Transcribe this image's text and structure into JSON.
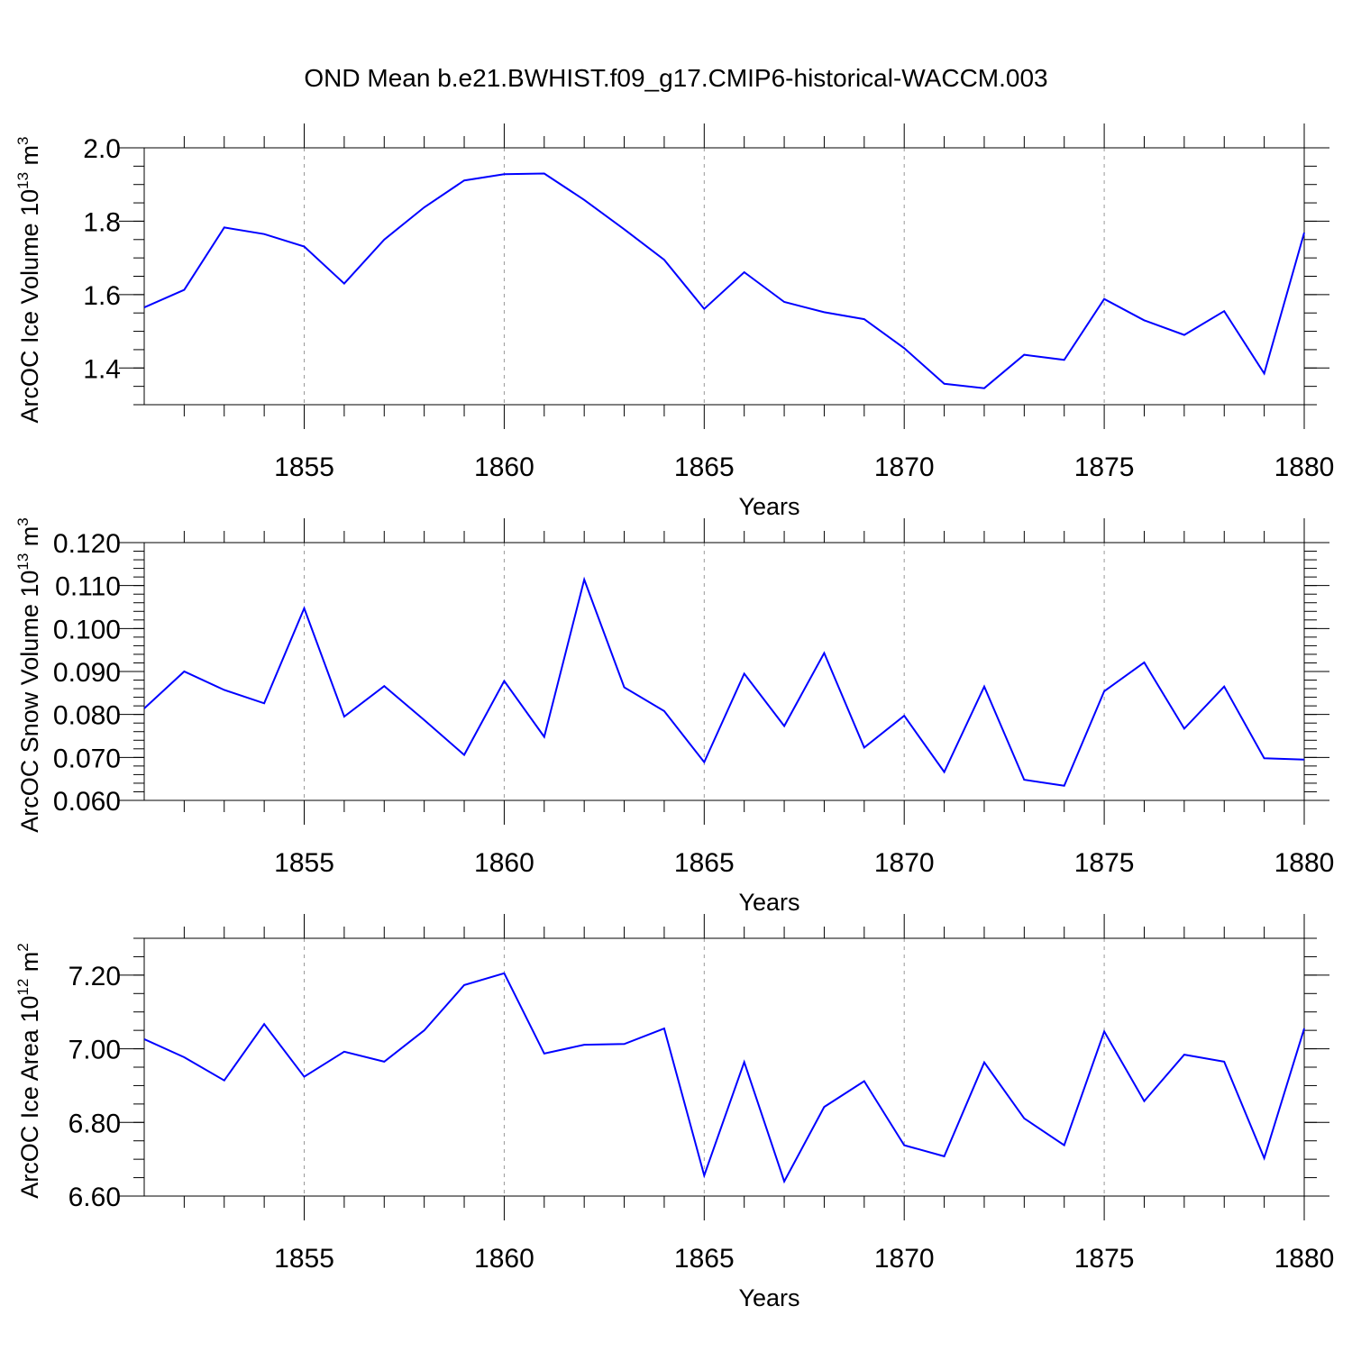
{
  "title": "OND Mean b.e21.BWHIST.f09_g17.CMIP6-historical-WACCM.003",
  "colors": {
    "series": "#0000ff",
    "grid": "#999999",
    "axis": "#000000"
  },
  "chart_data": [
    {
      "type": "line",
      "name": "ice-volume",
      "ylabel": {
        "main": "ArcOC Ice Volume 10",
        "exp": "13",
        "unit": " m",
        "unit_exp": "3"
      },
      "xlabel": "Years",
      "xlim": [
        1851,
        1880
      ],
      "ylim": [
        1.3,
        2.0
      ],
      "yticks": [
        1.4,
        1.6,
        1.8,
        2.0
      ],
      "ytick_labels": [
        "1.4",
        "1.6",
        "1.8",
        "2.0"
      ],
      "yminor_step": 0.05,
      "xticks": [
        1855,
        1860,
        1865,
        1870,
        1875,
        1880
      ],
      "xtick_labels": [
        "1855",
        "1860",
        "1865",
        "1870",
        "1875",
        "1880"
      ],
      "x": [
        1851,
        1852,
        1853,
        1854,
        1855,
        1856,
        1857,
        1858,
        1859,
        1860,
        1861,
        1862,
        1863,
        1864,
        1865,
        1866,
        1867,
        1868,
        1869,
        1870,
        1871,
        1872,
        1873,
        1874,
        1875,
        1876,
        1877,
        1878,
        1879,
        1880
      ],
      "values": [
        1.565,
        1.613,
        1.783,
        1.765,
        1.731,
        1.63,
        1.75,
        1.838,
        1.911,
        1.928,
        1.93,
        1.858,
        1.778,
        1.695,
        1.561,
        1.661,
        1.58,
        1.552,
        1.533,
        1.454,
        1.357,
        1.345,
        1.436,
        1.422,
        1.588,
        1.53,
        1.49,
        1.555,
        1.385,
        1.769
      ]
    },
    {
      "type": "line",
      "name": "snow-volume",
      "ylabel": {
        "main": "ArcOC Snow Volume 10",
        "exp": "13",
        "unit": " m",
        "unit_exp": "3"
      },
      "xlabel": "Years",
      "xlim": [
        1851,
        1880
      ],
      "ylim": [
        0.06,
        0.12
      ],
      "yticks": [
        0.06,
        0.07,
        0.08,
        0.09,
        0.1,
        0.11,
        0.12
      ],
      "ytick_labels": [
        "0.060",
        "0.070",
        "0.080",
        "0.090",
        "0.100",
        "0.110",
        "0.120"
      ],
      "yminor_step": 0.002,
      "xticks": [
        1855,
        1860,
        1865,
        1870,
        1875,
        1880
      ],
      "xtick_labels": [
        "1855",
        "1860",
        "1865",
        "1870",
        "1875",
        "1880"
      ],
      "x": [
        1851,
        1852,
        1853,
        1854,
        1855,
        1856,
        1857,
        1858,
        1859,
        1860,
        1861,
        1862,
        1863,
        1864,
        1865,
        1866,
        1867,
        1868,
        1869,
        1870,
        1871,
        1872,
        1873,
        1874,
        1875,
        1876,
        1877,
        1878,
        1879,
        1880
      ],
      "values": [
        0.0814,
        0.09,
        0.0857,
        0.0826,
        0.1047,
        0.0795,
        0.0866,
        0.0787,
        0.0706,
        0.0878,
        0.0748,
        0.1114,
        0.0863,
        0.0808,
        0.0689,
        0.0895,
        0.0773,
        0.0943,
        0.0723,
        0.0797,
        0.0666,
        0.0865,
        0.0648,
        0.0634,
        0.0854,
        0.0921,
        0.0767,
        0.0865,
        0.0698,
        0.0695
      ]
    },
    {
      "type": "line",
      "name": "ice-area",
      "ylabel": {
        "main": "ArcOC Ice Area 10",
        "exp": "12",
        "unit": " m",
        "unit_exp": "2"
      },
      "xlabel": "Years",
      "xlim": [
        1851,
        1880
      ],
      "ylim": [
        6.6,
        7.3
      ],
      "yticks": [
        6.6,
        6.8,
        7.0,
        7.2
      ],
      "ytick_labels": [
        "6.60",
        "6.80",
        "7.00",
        "7.20"
      ],
      "yminor_step": 0.05,
      "xticks": [
        1855,
        1860,
        1865,
        1870,
        1875,
        1880
      ],
      "xtick_labels": [
        "1855",
        "1860",
        "1865",
        "1870",
        "1875",
        "1880"
      ],
      "x": [
        1851,
        1852,
        1853,
        1854,
        1855,
        1856,
        1857,
        1858,
        1859,
        1860,
        1861,
        1862,
        1863,
        1864,
        1865,
        1866,
        1867,
        1868,
        1869,
        1870,
        1871,
        1872,
        1873,
        1874,
        1875,
        1876,
        1877,
        1878,
        1879,
        1880
      ],
      "values": [
        7.026,
        6.977,
        6.914,
        7.067,
        6.924,
        6.992,
        6.965,
        7.05,
        7.173,
        7.205,
        6.987,
        7.011,
        7.013,
        7.055,
        6.656,
        6.964,
        6.64,
        6.842,
        6.912,
        6.738,
        6.708,
        6.963,
        6.811,
        6.738,
        7.047,
        6.858,
        6.984,
        6.965,
        6.703,
        7.055
      ]
    }
  ]
}
